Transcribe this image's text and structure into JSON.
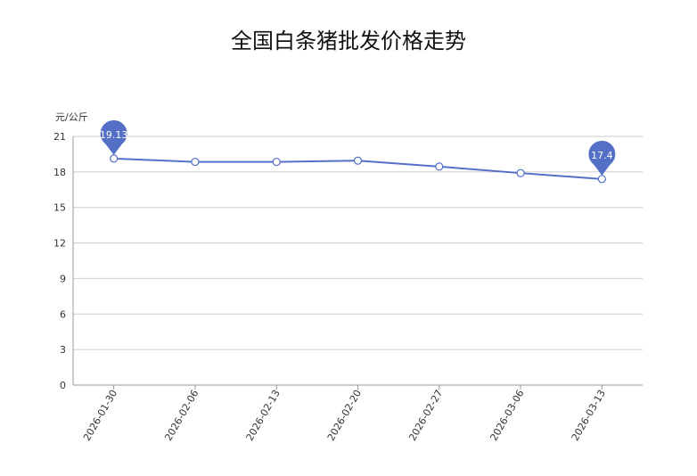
{
  "chart_data": {
    "type": "line",
    "title": "全国白条猪批发价格走势",
    "ylabel": "元/公斤",
    "xlabel": "",
    "categories": [
      "2026-01-30",
      "2026-02-06",
      "2026-02-13",
      "2026-02-20",
      "2026-02-27",
      "2026-03-06",
      "2026-03-13"
    ],
    "series": [
      {
        "values": [
          19.13,
          18.85,
          18.85,
          18.95,
          18.45,
          17.9,
          17.4
        ]
      }
    ],
    "ylim": [
      0,
      21
    ],
    "yticks": [
      0,
      3,
      6,
      9,
      12,
      15,
      18,
      21
    ],
    "annotations": [
      {
        "label": "19.13",
        "index": 0
      },
      {
        "label": "17.4",
        "index": 6
      }
    ],
    "colors": {
      "line": "#5470c6",
      "pin": "#5470c6",
      "grid": "#cccccc"
    },
    "grid": true
  }
}
